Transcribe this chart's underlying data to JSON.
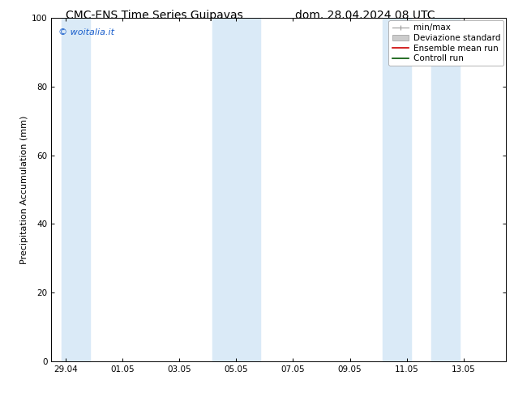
{
  "title_left": "CMC-ENS Time Series Guipavas",
  "title_right": "dom. 28.04.2024 08 UTC",
  "ylabel": "Precipitation Accumulation (mm)",
  "ylim": [
    0,
    100
  ],
  "background_color": "#ffffff",
  "plot_bg_color": "#ffffff",
  "watermark_text": "© woitalia.it",
  "watermark_color": "#1a5fcc",
  "x_tick_labels": [
    "29.04",
    "01.05",
    "03.05",
    "05.05",
    "07.05",
    "09.05",
    "11.05",
    "13.05"
  ],
  "x_tick_positions": [
    0,
    2,
    4,
    6,
    8,
    10,
    12,
    14
  ],
  "shaded_bands": [
    {
      "x_start": -0.15,
      "x_end": 0.85,
      "color": "#daeaf7"
    },
    {
      "x_start": 5.15,
      "x_end": 6.15,
      "color": "#daeaf7"
    },
    {
      "x_start": 5.85,
      "x_end": 6.85,
      "color": "#daeaf7"
    },
    {
      "x_start": 11.15,
      "x_end": 12.15,
      "color": "#daeaf7"
    },
    {
      "x_start": 12.85,
      "x_end": 13.85,
      "color": "#daeaf7"
    }
  ],
  "yticks": [
    0,
    20,
    40,
    60,
    80,
    100
  ],
  "x_total_min": -0.5,
  "x_total_max": 15.5,
  "font_size_title": 10,
  "font_size_axis": 8,
  "font_size_ticks": 7.5,
  "font_size_watermark": 8,
  "font_size_legend": 7.5
}
